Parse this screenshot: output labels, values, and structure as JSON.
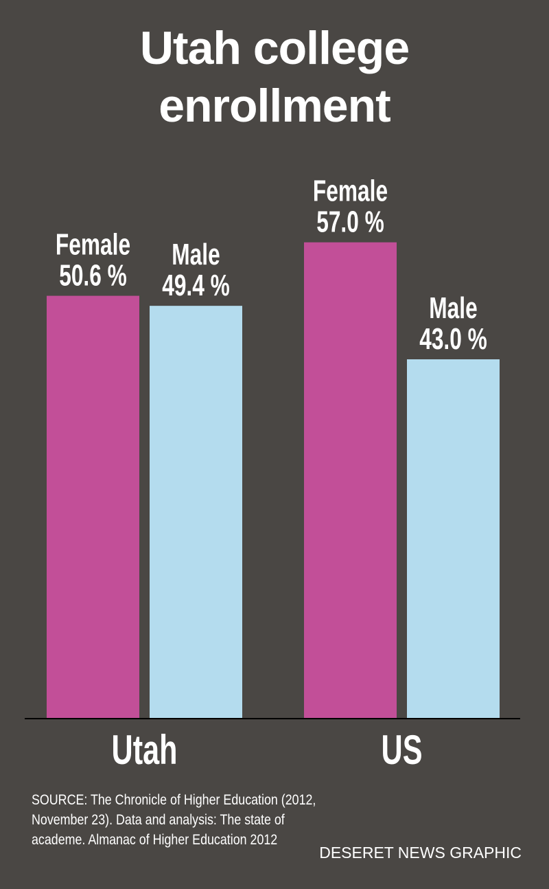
{
  "chart_data": {
    "type": "bar",
    "title": "Utah college enrollment",
    "categories": [
      "Utah",
      "US"
    ],
    "series": [
      {
        "name": "Female",
        "color": "#c24f98",
        "values": [
          50.6,
          57.0
        ],
        "value_labels": [
          "50.6 %",
          "57.0 %"
        ]
      },
      {
        "name": "Male",
        "color": "#b4dcee",
        "values": [
          49.4,
          43.0
        ],
        "value_labels": [
          "49.4 %",
          "43.0 %"
        ]
      }
    ],
    "ylim": [
      0,
      86
    ],
    "source": "SOURCE: The Chronicle of Higher Education (2012, November 23). Data and analysis: The state of academe. Almanac of Higher Education 2012",
    "credit": "DESERET NEWS GRAPHIC"
  }
}
